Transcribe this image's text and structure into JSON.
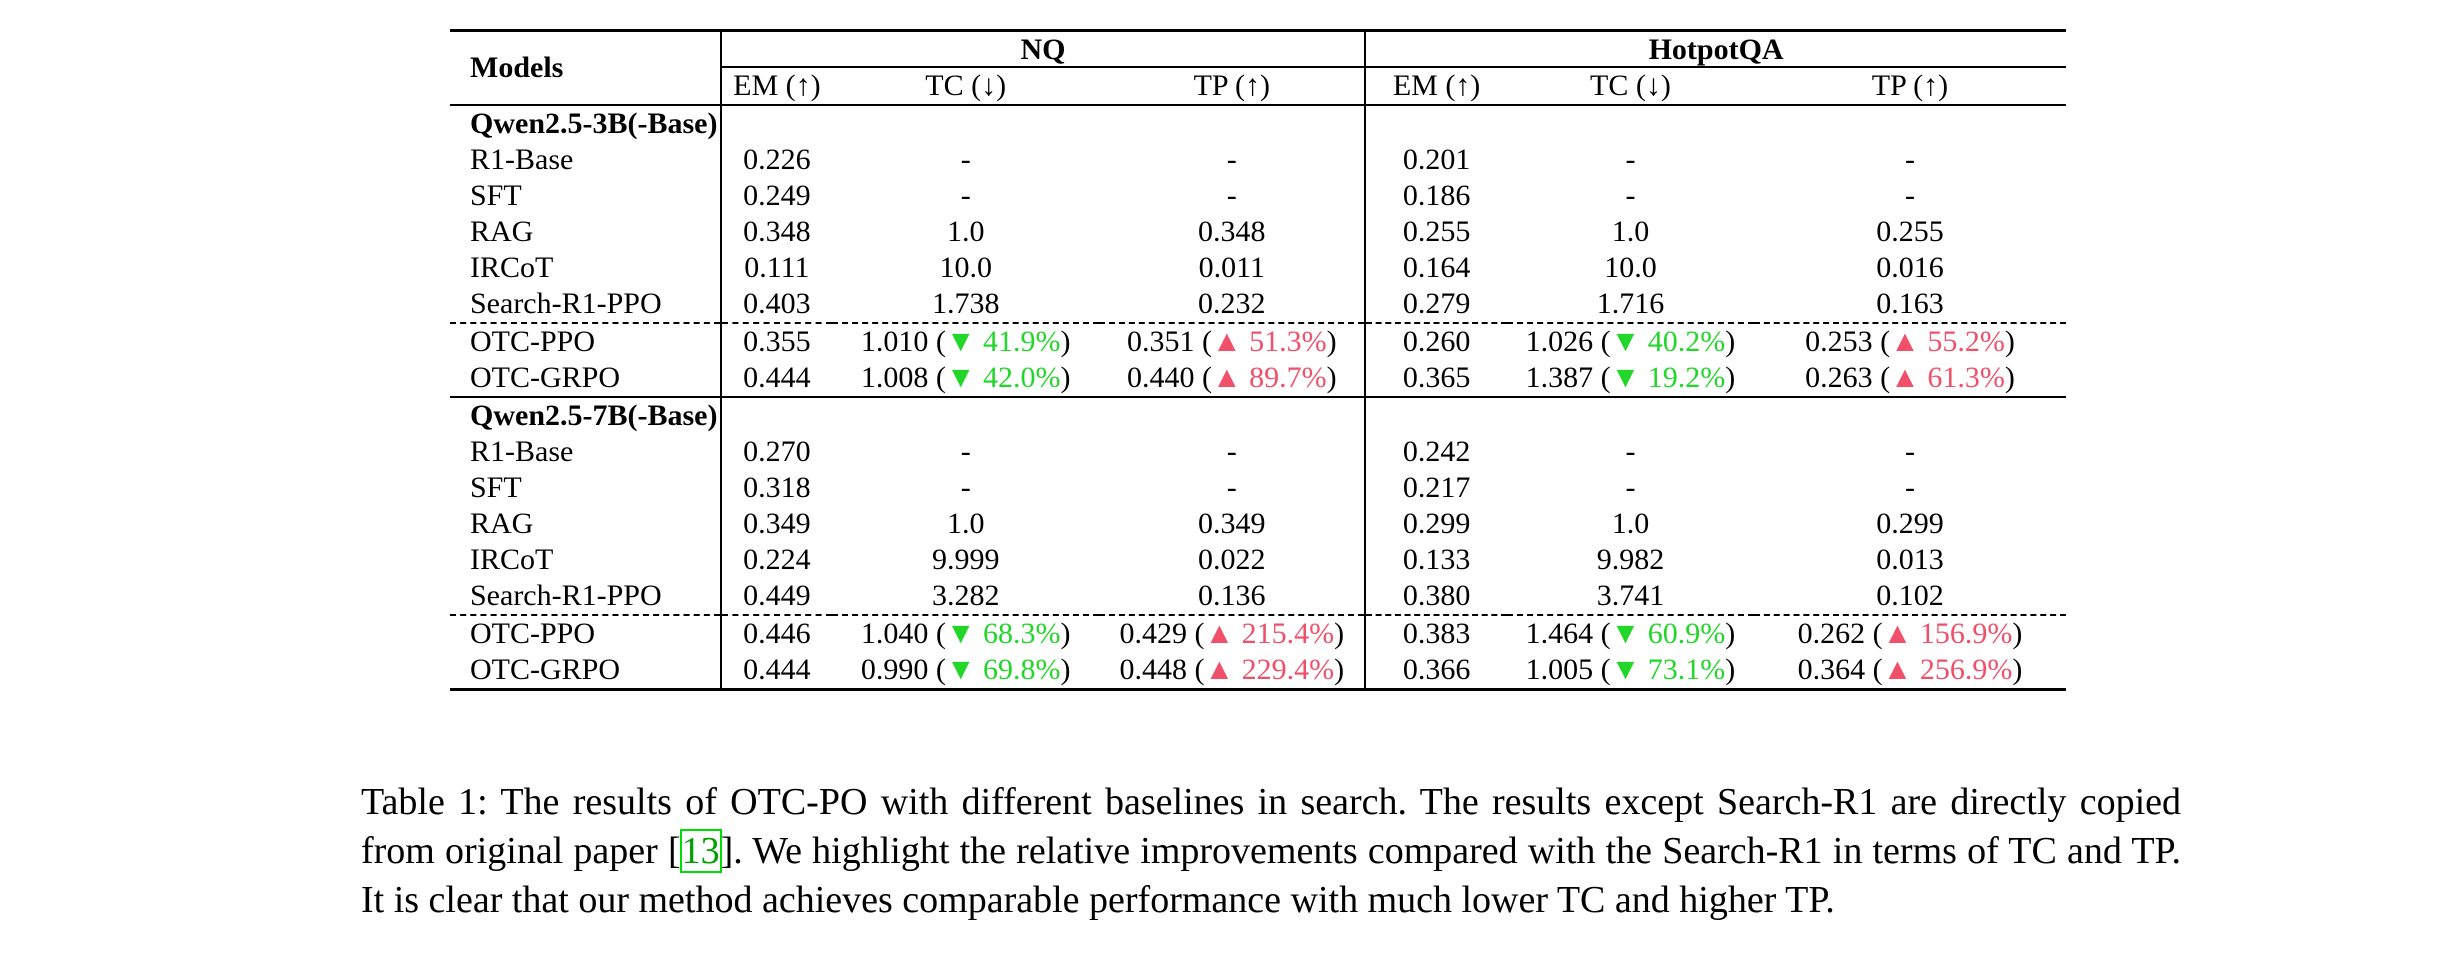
{
  "table": {
    "models_header": "Models",
    "groups": [
      "NQ",
      "HotpotQA"
    ],
    "metric_headers": [
      "EM (↑)",
      "TC (↓)",
      "TP (↑)",
      "EM (↑)",
      "TC (↓)",
      "TP (↑)"
    ],
    "sections": [
      {
        "title": "Qwen2.5-3B(-Base)",
        "rows": [
          {
            "model": "R1-Base",
            "cells": [
              {
                "v": "0.226"
              },
              {
                "v": "-"
              },
              {
                "v": "-"
              },
              {
                "v": "0.201"
              },
              {
                "v": "-"
              },
              {
                "v": "-"
              }
            ]
          },
          {
            "model": "SFT",
            "cells": [
              {
                "v": "0.249"
              },
              {
                "v": "-"
              },
              {
                "v": "-"
              },
              {
                "v": "0.186"
              },
              {
                "v": "-"
              },
              {
                "v": "-"
              }
            ]
          },
          {
            "model": "RAG",
            "cells": [
              {
                "v": "0.348"
              },
              {
                "v": "1.0"
              },
              {
                "v": "0.348"
              },
              {
                "v": "0.255"
              },
              {
                "v": "1.0"
              },
              {
                "v": "0.255"
              }
            ]
          },
          {
            "model": "IRCoT",
            "cells": [
              {
                "v": "0.111"
              },
              {
                "v": "10.0"
              },
              {
                "v": "0.011"
              },
              {
                "v": "0.164"
              },
              {
                "v": "10.0"
              },
              {
                "v": "0.016"
              }
            ]
          },
          {
            "model": "Search-R1-PPO",
            "cells": [
              {
                "v": "0.403"
              },
              {
                "v": "1.738"
              },
              {
                "v": "0.232"
              },
              {
                "v": "0.279"
              },
              {
                "v": "1.716"
              },
              {
                "v": "0.163"
              }
            ]
          },
          {
            "model": "OTC-PPO",
            "cells": [
              {
                "v": "0.355"
              },
              {
                "v": "1.010",
                "d": "▼ 41.9%",
                "dir": "down"
              },
              {
                "v": "0.351",
                "d": "▲ 51.3%",
                "dir": "up"
              },
              {
                "v": "0.260"
              },
              {
                "v": "1.026",
                "d": "▼ 40.2%",
                "dir": "down"
              },
              {
                "v": "0.253",
                "d": "▲ 55.2%",
                "dir": "up"
              }
            ]
          },
          {
            "model": "OTC-GRPO",
            "cells": [
              {
                "v": "0.444"
              },
              {
                "v": "1.008",
                "d": "▼ 42.0%",
                "dir": "down"
              },
              {
                "v": "0.440",
                "d": "▲ 89.7%",
                "dir": "up"
              },
              {
                "v": "0.365"
              },
              {
                "v": "1.387",
                "d": "▼ 19.2%",
                "dir": "down"
              },
              {
                "v": "0.263",
                "d": "▲ 61.3%",
                "dir": "up"
              }
            ]
          }
        ]
      },
      {
        "title": "Qwen2.5-7B(-Base)",
        "rows": [
          {
            "model": "R1-Base",
            "cells": [
              {
                "v": "0.270"
              },
              {
                "v": "-"
              },
              {
                "v": "-"
              },
              {
                "v": "0.242"
              },
              {
                "v": "-"
              },
              {
                "v": "-"
              }
            ]
          },
          {
            "model": "SFT",
            "cells": [
              {
                "v": "0.318"
              },
              {
                "v": "-"
              },
              {
                "v": "-"
              },
              {
                "v": "0.217"
              },
              {
                "v": "-"
              },
              {
                "v": "-"
              }
            ]
          },
          {
            "model": "RAG",
            "cells": [
              {
                "v": "0.349"
              },
              {
                "v": "1.0"
              },
              {
                "v": "0.349"
              },
              {
                "v": "0.299"
              },
              {
                "v": "1.0"
              },
              {
                "v": "0.299"
              }
            ]
          },
          {
            "model": "IRCoT",
            "cells": [
              {
                "v": "0.224"
              },
              {
                "v": "9.999"
              },
              {
                "v": "0.022"
              },
              {
                "v": "0.133"
              },
              {
                "v": "9.982"
              },
              {
                "v": "0.013"
              }
            ]
          },
          {
            "model": "Search-R1-PPO",
            "cells": [
              {
                "v": "0.449"
              },
              {
                "v": "3.282"
              },
              {
                "v": "0.136"
              },
              {
                "v": "0.380"
              },
              {
                "v": "3.741"
              },
              {
                "v": "0.102"
              }
            ]
          },
          {
            "model": "OTC-PPO",
            "cells": [
              {
                "v": "0.446"
              },
              {
                "v": "1.040",
                "d": "▼ 68.3%",
                "dir": "down"
              },
              {
                "v": "0.429",
                "d": "▲ 215.4%",
                "dir": "up"
              },
              {
                "v": "0.383"
              },
              {
                "v": "1.464",
                "d": "▼ 60.9%",
                "dir": "down"
              },
              {
                "v": "0.262",
                "d": "▲ 156.9%",
                "dir": "up"
              }
            ]
          },
          {
            "model": "OTC-GRPO",
            "cells": [
              {
                "v": "0.444"
              },
              {
                "v": "0.990",
                "d": "▼ 69.8%",
                "dir": "down"
              },
              {
                "v": "0.448",
                "d": "▲ 229.4%",
                "dir": "up"
              },
              {
                "v": "0.366"
              },
              {
                "v": "1.005",
                "d": "▼ 73.1%",
                "dir": "down"
              },
              {
                "v": "0.364",
                "d": "▲ 256.9%",
                "dir": "up"
              }
            ]
          }
        ]
      }
    ]
  },
  "colors": {
    "decrease": "#22d62a",
    "increase": "#f0506a",
    "citation": "#00a000"
  },
  "caption": {
    "before_cite": "Table 1: The results of OTC-PO with different baselines in search. The results except Search-R1 are directly copied from original paper [",
    "cite": "13",
    "after_cite": "]. We highlight the relative improvements compared with the Search-R1 in terms of TC and TP. It is clear that our method achieves comparable performance with much lower TC and higher TP."
  }
}
